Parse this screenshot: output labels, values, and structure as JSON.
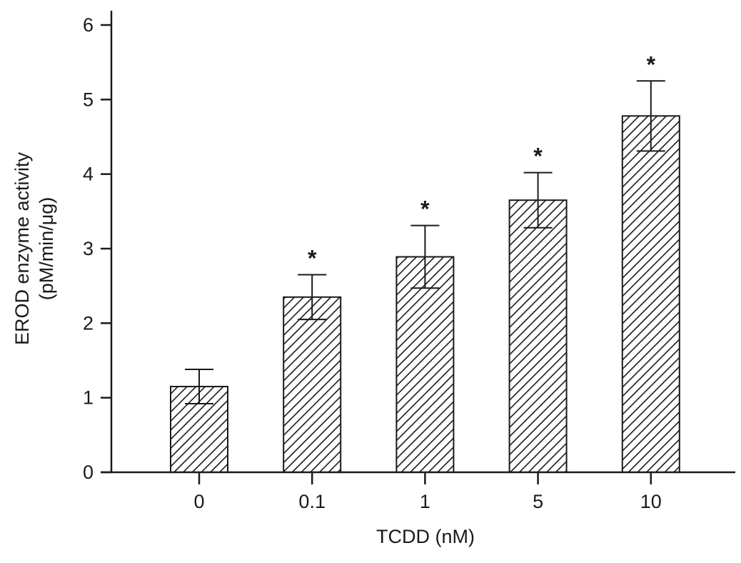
{
  "chart_data": {
    "type": "bar",
    "title": "",
    "xlabel": "TCDD (nM)",
    "ylabel": "EROD enzyme activity",
    "ylabel_units": "(pM/min/μg)",
    "categories": [
      "0",
      "0.1",
      "1",
      "5",
      "10"
    ],
    "values": [
      1.15,
      2.35,
      2.89,
      3.65,
      4.78
    ],
    "errors": [
      0.23,
      0.3,
      0.42,
      0.37,
      0.47
    ],
    "significance": [
      "",
      "*",
      "*",
      "*",
      "*"
    ],
    "ylim": [
      0,
      6
    ],
    "yticks": [
      "0",
      "1",
      "2",
      "3",
      "4",
      "5",
      "6"
    ],
    "grid": false,
    "bar_fill": "hatched diagonal",
    "colors": {
      "ink": "#1a1a1a",
      "background": "#ffffff"
    }
  }
}
